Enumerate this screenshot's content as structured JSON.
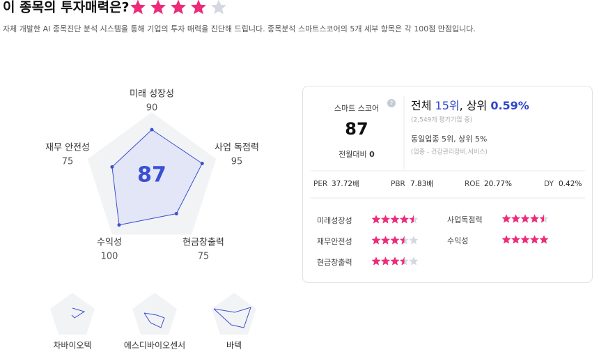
{
  "header": {
    "title": "이 종목의 투자매력은?",
    "stars": 4,
    "max_stars": 5,
    "description": "자체 개발한 AI 종목진단 분석 시스템을 통해 기업의 투자 매력을 진단해 드립니다. 종목분석 스마트스코어의 5개 세부 항목은 각 100점 만점입니다."
  },
  "radar": {
    "score": 87,
    "max": 100,
    "axes": [
      {
        "label": "미래 성장성",
        "value": 90
      },
      {
        "label": "사업 독점력",
        "value": 95
      },
      {
        "label": "현금창출력",
        "value": 75
      },
      {
        "label": "수익성",
        "value": 100
      },
      {
        "label": "재무 안전성",
        "value": 75
      }
    ]
  },
  "peers": [
    "차바이오텍",
    "에스디바이오센서",
    "바텍"
  ],
  "card": {
    "score_label": "스마트 스코어",
    "score": "87",
    "change_label": "전월대비",
    "change": "0",
    "rank_total": [
      "전체 ",
      "15위",
      ", 상위 ",
      "0.59%"
    ],
    "rank_total_note": "(2,549개 평가기업 중)",
    "rank_sector": "동일업종 5위, 상위 5%",
    "rank_sector_note": "(업종 - 건강관리장비,서비스)",
    "metrics": [
      {
        "label": "PER",
        "value": "37.72배"
      },
      {
        "label": "PBR",
        "value": "7.83배"
      },
      {
        "label": "ROE",
        "value": "20.77%"
      },
      {
        "label": "DY",
        "value": "0.42%"
      }
    ],
    "ratings": [
      {
        "label": "미래성장성",
        "stars": 4.5
      },
      {
        "label": "사업독점력",
        "stars": 4.5
      },
      {
        "label": "재무안전성",
        "stars": 3.5
      },
      {
        "label": "수익성",
        "stars": 5
      },
      {
        "label": "현금창출력",
        "stars": 3.5
      }
    ]
  }
}
